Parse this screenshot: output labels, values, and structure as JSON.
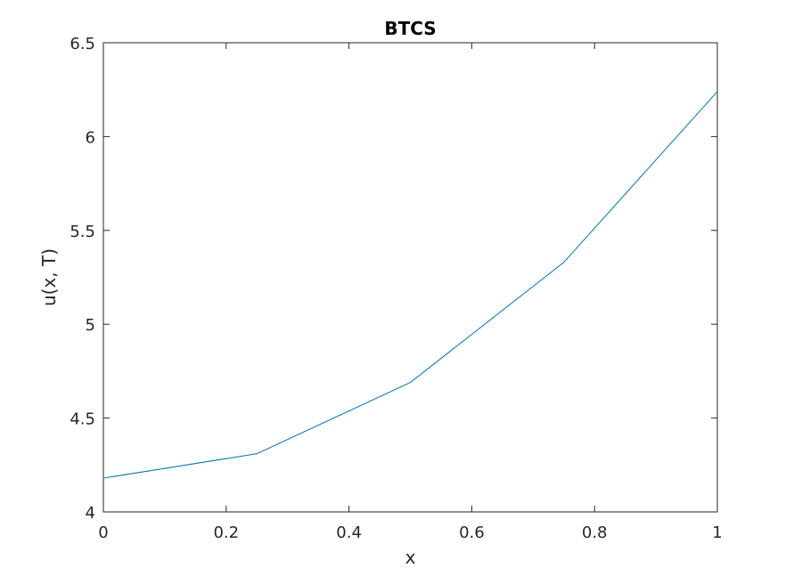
{
  "chart_data": {
    "type": "line",
    "title": "BTCS",
    "xlabel": "x",
    "ylabel": "u(x, T)",
    "xlim": [
      0,
      1
    ],
    "ylim": [
      4,
      6.5
    ],
    "xticks": [
      0,
      0.2,
      0.4,
      0.6,
      0.8,
      1
    ],
    "xtick_labels": [
      "0",
      "0.2",
      "0.4",
      "0.6",
      "0.8",
      "1"
    ],
    "yticks": [
      4,
      4.5,
      5,
      5.5,
      6,
      6.5
    ],
    "ytick_labels": [
      "4",
      "4.5",
      "5",
      "5.5",
      "6",
      "6.5"
    ],
    "grid": false,
    "series": [
      {
        "x": [
          0,
          0.25,
          0.5,
          0.75,
          1
        ],
        "y": [
          4.18,
          4.31,
          4.69,
          5.33,
          6.24
        ],
        "color": "#0072bd"
      }
    ]
  }
}
